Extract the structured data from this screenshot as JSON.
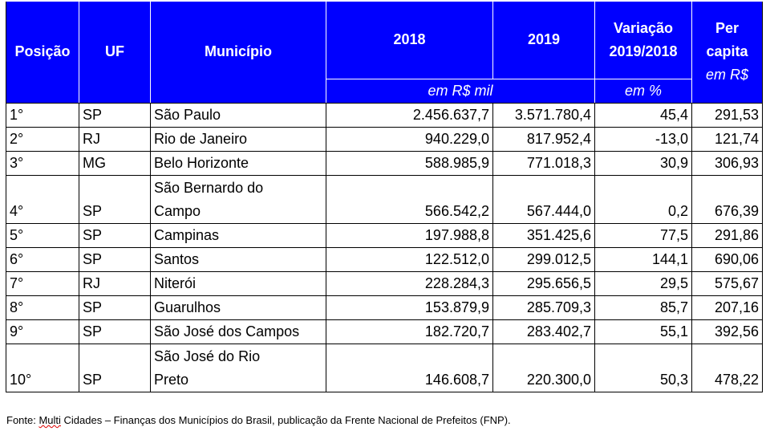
{
  "header": {
    "posicao": "Posição",
    "uf": "UF",
    "municipio": "Município",
    "y2018": "2018",
    "y2019": "2019",
    "variacao": "Variação 2019/2018",
    "per_capita": "Per capita",
    "per_capita_unit": "em R$",
    "unit_mil": "em R$ mil",
    "unit_pct": "em %"
  },
  "rows": [
    {
      "pos": "1°",
      "uf": "SP",
      "mun": "São Paulo",
      "v2018": "2.456.637,7",
      "v2019": "3.571.780,4",
      "var": "45,4",
      "pc": "291,53"
    },
    {
      "pos": "2°",
      "uf": "RJ",
      "mun": "Rio de Janeiro",
      "v2018": "940.229,0",
      "v2019": "817.952,4",
      "var": "-13,0",
      "pc": "121,74"
    },
    {
      "pos": "3°",
      "uf": "MG",
      "mun": "Belo Horizonte",
      "v2018": "588.985,9",
      "v2019": "771.018,3",
      "var": "30,9",
      "pc": "306,93"
    },
    {
      "pos": "4°",
      "uf": "SP",
      "mun": "São Bernardo do\nCampo",
      "v2018": "566.542,2",
      "v2019": "567.444,0",
      "var": "0,2",
      "pc": "676,39"
    },
    {
      "pos": "5°",
      "uf": "SP",
      "mun": "Campinas",
      "v2018": "197.988,8",
      "v2019": "351.425,6",
      "var": "77,5",
      "pc": "291,86"
    },
    {
      "pos": "6°",
      "uf": "SP",
      "mun": "Santos",
      "v2018": "122.512,0",
      "v2019": "299.012,5",
      "var": "144,1",
      "pc": "690,06"
    },
    {
      "pos": "7°",
      "uf": "RJ",
      "mun": "Niterói",
      "v2018": "228.284,3",
      "v2019": "295.656,5",
      "var": "29,5",
      "pc": "575,67"
    },
    {
      "pos": "8°",
      "uf": "SP",
      "mun": "Guarulhos",
      "v2018": "153.879,9",
      "v2019": "285.709,3",
      "var": "85,7",
      "pc": "207,16"
    },
    {
      "pos": "9°",
      "uf": "SP",
      "mun": "São José dos Campos",
      "v2018": "182.720,7",
      "v2019": "283.402,7",
      "var": "55,1",
      "pc": "392,56"
    },
    {
      "pos": "10°",
      "uf": "SP",
      "mun": "São José do Rio\nPreto",
      "v2018": "146.608,7",
      "v2019": "220.300,0",
      "var": "50,3",
      "pc": "478,22"
    }
  ],
  "footer": {
    "prefix": "Fonte: ",
    "underlined": "Multi",
    "rest": " Cidades – Finanças dos Municípios do Brasil, publicação da Frente Nacional de Prefeitos (FNP)."
  }
}
